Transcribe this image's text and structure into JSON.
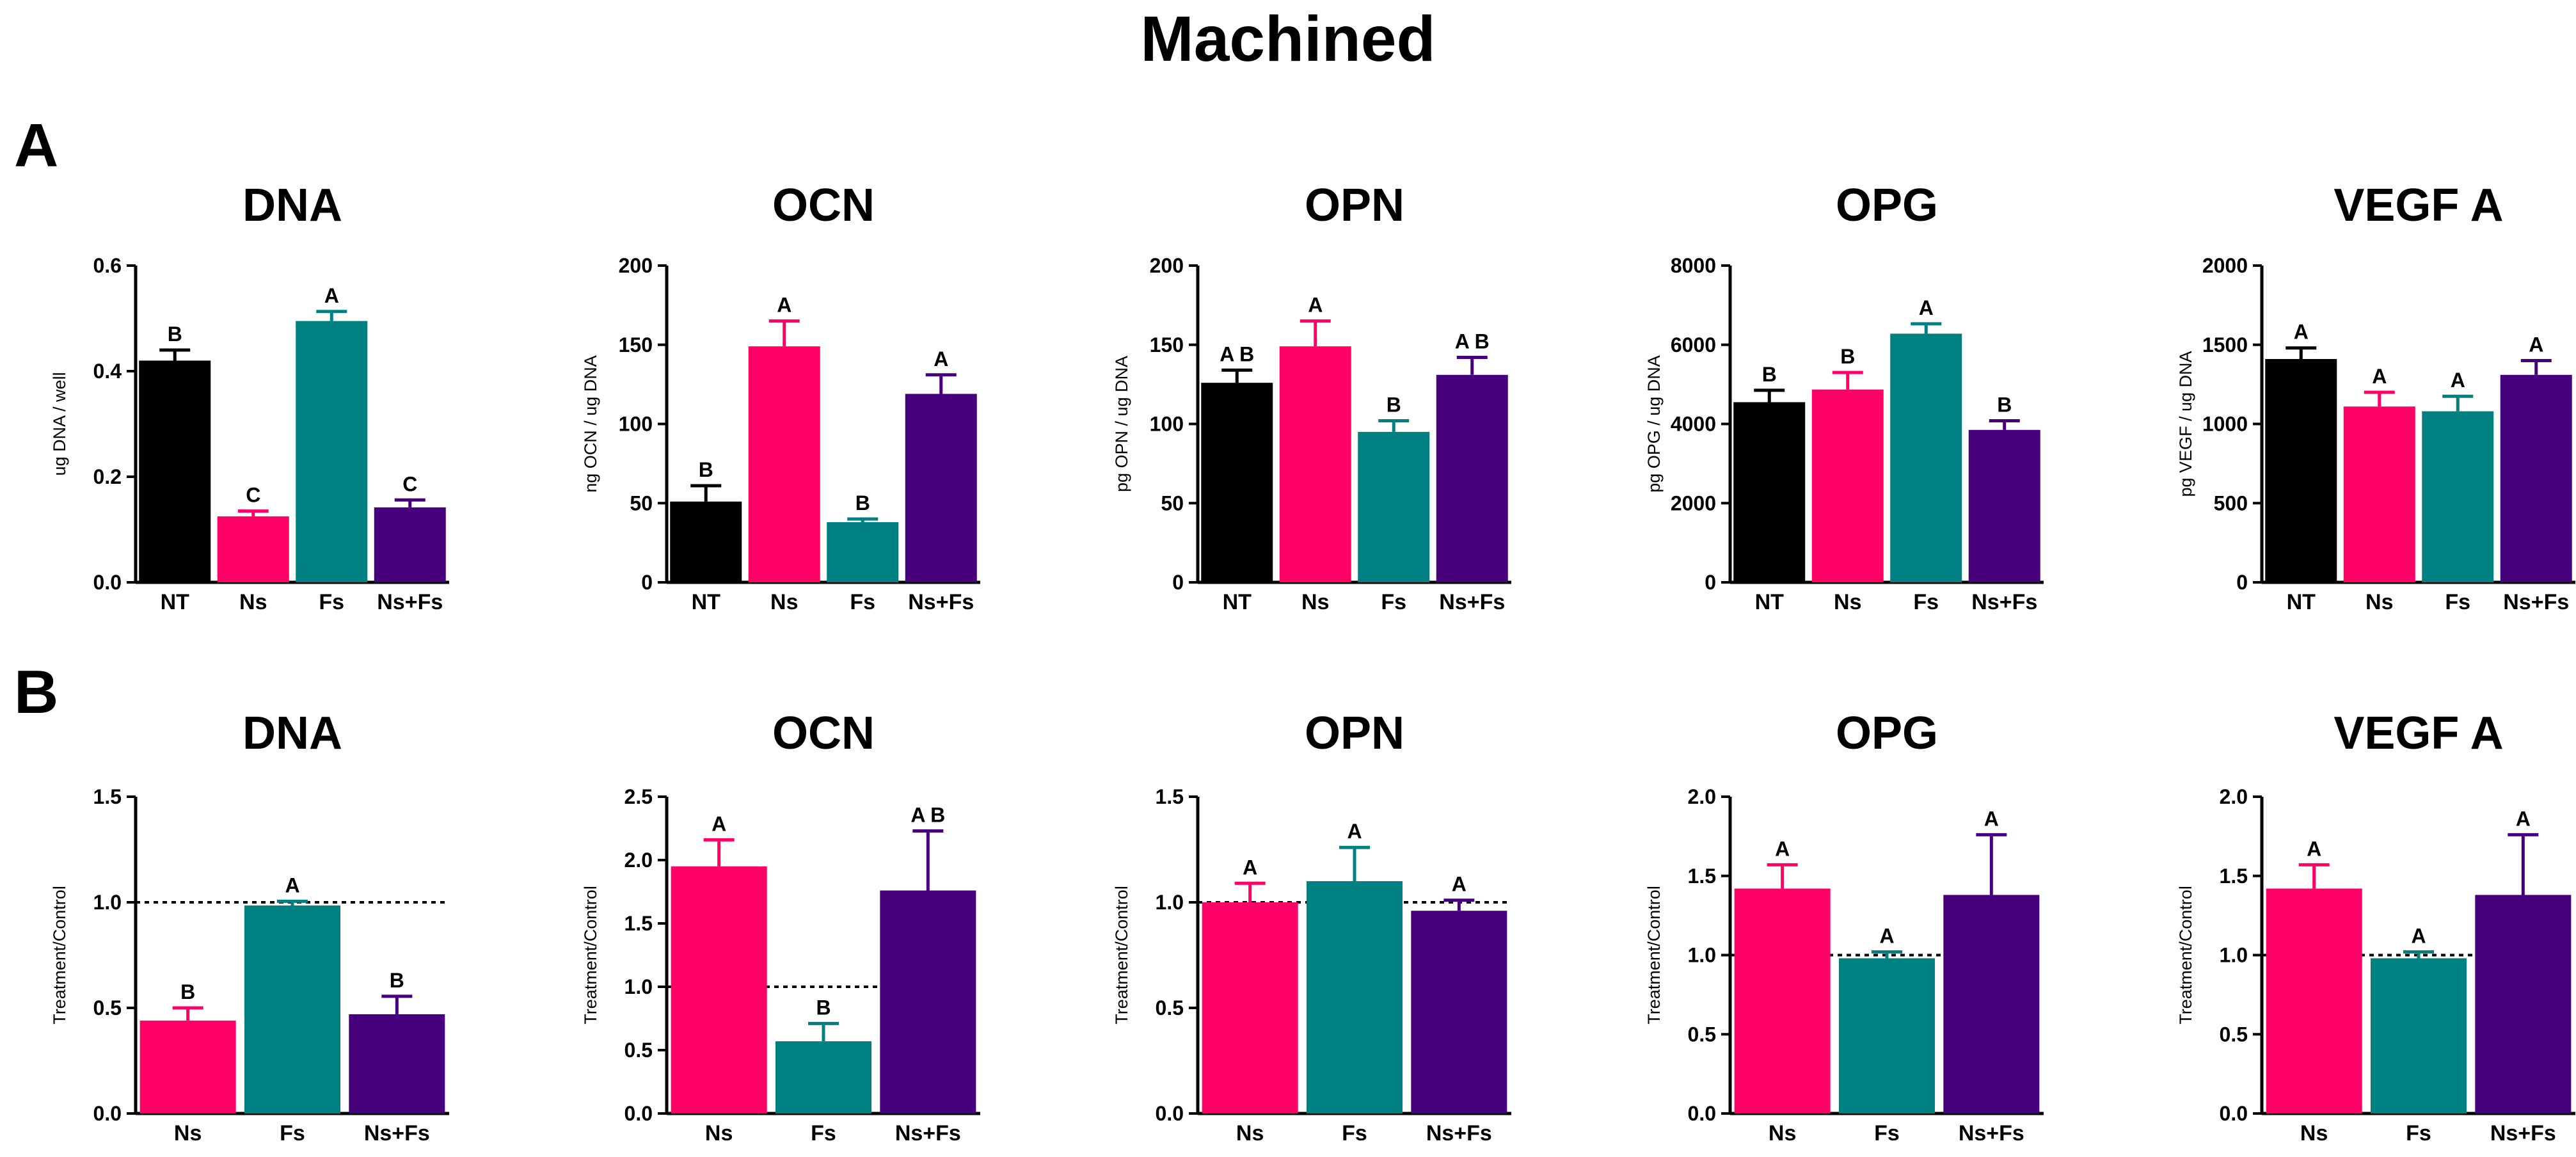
{
  "figure": {
    "title": "Machined",
    "panels": [
      {
        "letter": "A"
      },
      {
        "letter": "B"
      }
    ]
  },
  "colors": {
    "NT": "#000000",
    "Ns": "#ff0066",
    "Fs": "#008080",
    "Ns+Fs": "#47007c"
  },
  "chart_data": [
    {
      "panel": "A",
      "type": "bar",
      "title": "DNA",
      "ylabel": "ug DNA / well",
      "categories": [
        "NT",
        "Ns",
        "Fs",
        "Ns+Fs"
      ],
      "values": [
        0.42,
        0.125,
        0.495,
        0.142
      ],
      "errors": [
        0.02,
        0.01,
        0.018,
        0.014
      ],
      "letters": [
        "B",
        "C",
        "A",
        "C"
      ],
      "ylim": [
        0,
        0.6
      ],
      "yticks": [
        "0.0",
        "0.2",
        "0.4",
        "0.6"
      ]
    },
    {
      "panel": "A",
      "type": "bar",
      "title": "OCN",
      "ylabel": "ng OCN / ug DNA",
      "categories": [
        "NT",
        "Ns",
        "Fs",
        "Ns+Fs"
      ],
      "values": [
        51,
        149,
        38,
        119
      ],
      "errors": [
        10,
        16,
        2,
        12
      ],
      "letters": [
        "B",
        "A",
        "B",
        "A"
      ],
      "ylim": [
        0,
        200
      ],
      "yticks": [
        "0",
        "50",
        "100",
        "150",
        "200"
      ]
    },
    {
      "panel": "A",
      "type": "bar",
      "title": "OPN",
      "ylabel": "pg OPN / ug DNA",
      "categories": [
        "NT",
        "Ns",
        "Fs",
        "Ns+Fs"
      ],
      "values": [
        126,
        149,
        95,
        131
      ],
      "errors": [
        8,
        16,
        7,
        11
      ],
      "letters": [
        "A B",
        "A",
        "B",
        "A B"
      ],
      "ylim": [
        0,
        200
      ],
      "yticks": [
        "0",
        "50",
        "100",
        "150",
        "200"
      ]
    },
    {
      "panel": "A",
      "type": "bar",
      "title": "OPG",
      "ylabel": "pg OPG / ug DNA",
      "categories": [
        "NT",
        "Ns",
        "Fs",
        "Ns+Fs"
      ],
      "values": [
        4550,
        4870,
        6280,
        3850
      ],
      "errors": [
        300,
        430,
        250,
        230
      ],
      "letters": [
        "B",
        "B",
        "A",
        "B"
      ],
      "ylim": [
        0,
        8000
      ],
      "yticks": [
        "0",
        "2000",
        "4000",
        "6000",
        "8000"
      ]
    },
    {
      "panel": "A",
      "type": "bar",
      "title": "VEGF A",
      "ylabel": "pg VEGF / ug DNA",
      "categories": [
        "NT",
        "Ns",
        "Fs",
        "Ns+Fs"
      ],
      "values": [
        1410,
        1110,
        1080,
        1310
      ],
      "errors": [
        70,
        90,
        95,
        90
      ],
      "letters": [
        "A",
        "A",
        "A",
        "A"
      ],
      "ylim": [
        0,
        2000
      ],
      "yticks": [
        "0",
        "500",
        "1000",
        "1500",
        "2000"
      ]
    },
    {
      "panel": "B",
      "type": "bar",
      "title": "DNA",
      "ylabel": "Treatment/Control",
      "categories": [
        "Ns",
        "Fs",
        "Ns+Fs"
      ],
      "values": [
        0.44,
        0.985,
        0.47
      ],
      "errors": [
        0.06,
        0.02,
        0.085
      ],
      "letters": [
        "B",
        "A",
        "B"
      ],
      "reference_line": 1.0,
      "ylim": [
        0,
        1.5
      ],
      "yticks": [
        "0.0",
        "0.5",
        "1.0",
        "1.5"
      ]
    },
    {
      "panel": "B",
      "type": "bar",
      "title": "OCN",
      "ylabel": "Treatment/Control",
      "categories": [
        "Ns",
        "Fs",
        "Ns+Fs"
      ],
      "values": [
        1.95,
        0.57,
        1.76
      ],
      "errors": [
        0.21,
        0.14,
        0.47
      ],
      "letters": [
        "A",
        "B",
        "A B"
      ],
      "reference_line": 1.0,
      "ylim": [
        0,
        2.5
      ],
      "yticks": [
        "0.0",
        "0.5",
        "1.0",
        "1.5",
        "2.0",
        "2.5"
      ]
    },
    {
      "panel": "B",
      "type": "bar",
      "title": "OPN",
      "ylabel": "Treatment/Control",
      "categories": [
        "Ns",
        "Fs",
        "Ns+Fs"
      ],
      "values": [
        1.0,
        1.1,
        0.96
      ],
      "errors": [
        0.09,
        0.16,
        0.05
      ],
      "letters": [
        "A",
        "A",
        "A"
      ],
      "reference_line": 1.0,
      "ylim": [
        0,
        1.5
      ],
      "yticks": [
        "0.0",
        "0.5",
        "1.0",
        "1.5"
      ]
    },
    {
      "panel": "B",
      "type": "bar",
      "title": "OPG",
      "ylabel": "Treatment/Control",
      "categories": [
        "Ns",
        "Fs",
        "Ns+Fs"
      ],
      "values": [
        1.42,
        0.98,
        1.38
      ],
      "errors": [
        0.15,
        0.04,
        0.38
      ],
      "letters": [
        "A",
        "A",
        "A"
      ],
      "reference_line": 1.0,
      "ylim": [
        0,
        2.0
      ],
      "yticks": [
        "0.0",
        "0.5",
        "1.0",
        "1.5",
        "2.0"
      ]
    },
    {
      "panel": "B",
      "type": "bar",
      "title": "VEGF A",
      "ylabel": "Treatment/Control",
      "categories": [
        "Ns",
        "Fs",
        "Ns+Fs"
      ],
      "values": [
        1.42,
        0.98,
        1.38
      ],
      "errors": [
        0.15,
        0.04,
        0.38
      ],
      "letters": [
        "A",
        "A",
        "A"
      ],
      "reference_line": 1.0,
      "ylim": [
        0,
        2.0
      ],
      "yticks": [
        "0.0",
        "0.5",
        "1.0",
        "1.5",
        "2.0"
      ]
    }
  ]
}
